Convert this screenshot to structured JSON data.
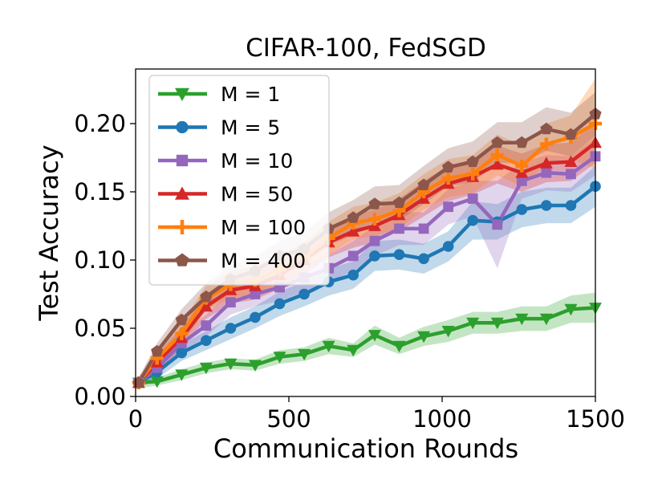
{
  "chart_data": {
    "type": "line",
    "title": "CIFAR-100, FedSGD",
    "xlabel": "Communication Rounds",
    "ylabel": "Test Accuracy",
    "xlim": [
      0,
      1500
    ],
    "ylim": [
      0,
      0.24
    ],
    "xticks": [
      0,
      500,
      1000,
      1500
    ],
    "yticks": [
      0.0,
      0.05,
      0.1,
      0.15,
      0.2
    ],
    "xtick_labels": [
      "0",
      "500",
      "1000",
      "1500"
    ],
    "ytick_labels": [
      "0.00",
      "0.05",
      "0.10",
      "0.15",
      "0.20"
    ],
    "grid": false,
    "legend_position": "upper-left",
    "x": [
      10,
      70,
      150,
      230,
      310,
      390,
      470,
      550,
      630,
      710,
      780,
      860,
      940,
      1020,
      1100,
      1180,
      1260,
      1340,
      1420,
      1500
    ],
    "series": [
      {
        "name": "M = 1",
        "color": "#2ca02c",
        "marker": "triangle-down",
        "values": [
          0.01,
          0.011,
          0.016,
          0.021,
          0.024,
          0.023,
          0.029,
          0.031,
          0.037,
          0.034,
          0.045,
          0.037,
          0.044,
          0.048,
          0.054,
          0.054,
          0.057,
          0.057,
          0.064,
          0.065
        ],
        "band": [
          0.004,
          0.003,
          0.004,
          0.004,
          0.004,
          0.004,
          0.005,
          0.005,
          0.006,
          0.005,
          0.007,
          0.006,
          0.007,
          0.008,
          0.008,
          0.008,
          0.009,
          0.009,
          0.01,
          0.011
        ]
      },
      {
        "name": "M = 5",
        "color": "#1f77b4",
        "marker": "circle",
        "values": [
          0.01,
          0.018,
          0.032,
          0.041,
          0.05,
          0.058,
          0.068,
          0.075,
          0.084,
          0.089,
          0.103,
          0.104,
          0.101,
          0.11,
          0.129,
          0.128,
          0.137,
          0.14,
          0.14,
          0.154
        ],
        "band": [
          0.004,
          0.005,
          0.006,
          0.007,
          0.008,
          0.008,
          0.009,
          0.009,
          0.01,
          0.01,
          0.011,
          0.011,
          0.011,
          0.011,
          0.014,
          0.013,
          0.013,
          0.013,
          0.013,
          0.015
        ]
      },
      {
        "name": "M = 10",
        "color": "#9467bd",
        "marker": "square",
        "values": [
          0.01,
          0.021,
          0.039,
          0.052,
          0.069,
          0.075,
          0.08,
          0.087,
          0.094,
          0.103,
          0.114,
          0.123,
          0.123,
          0.139,
          0.145,
          0.126,
          0.158,
          0.164,
          0.163,
          0.176
        ],
        "band": [
          0.004,
          0.006,
          0.007,
          0.008,
          0.009,
          0.009,
          0.01,
          0.01,
          0.01,
          0.011,
          0.011,
          0.012,
          0.012,
          0.013,
          0.013,
          0.032,
          0.013,
          0.013,
          0.013,
          0.014
        ]
      },
      {
        "name": "M = 50",
        "color": "#d62728",
        "marker": "triangle-up",
        "values": [
          0.01,
          0.025,
          0.043,
          0.066,
          0.078,
          0.081,
          0.089,
          0.1,
          0.113,
          0.121,
          0.125,
          0.133,
          0.145,
          0.156,
          0.161,
          0.17,
          0.164,
          0.171,
          0.172,
          0.186
        ],
        "band": [
          0.004,
          0.006,
          0.008,
          0.009,
          0.01,
          0.01,
          0.01,
          0.011,
          0.011,
          0.012,
          0.012,
          0.012,
          0.013,
          0.013,
          0.013,
          0.014,
          0.014,
          0.014,
          0.014,
          0.015
        ]
      },
      {
        "name": "M = 100",
        "color": "#ff7f0e",
        "marker": "plus",
        "values": [
          0.01,
          0.028,
          0.046,
          0.072,
          0.082,
          0.085,
          0.093,
          0.102,
          0.116,
          0.127,
          0.13,
          0.136,
          0.15,
          0.16,
          0.163,
          0.177,
          0.169,
          0.185,
          0.19,
          0.2
        ],
        "band": [
          0.004,
          0.006,
          0.008,
          0.009,
          0.01,
          0.01,
          0.011,
          0.011,
          0.012,
          0.012,
          0.012,
          0.013,
          0.013,
          0.014,
          0.014,
          0.015,
          0.015,
          0.015,
          0.016,
          0.033
        ]
      },
      {
        "name": "M = 400",
        "color": "#8c564b",
        "marker": "pentagon",
        "values": [
          0.01,
          0.033,
          0.056,
          0.073,
          0.086,
          0.092,
          0.103,
          0.108,
          0.123,
          0.131,
          0.141,
          0.142,
          0.155,
          0.168,
          0.172,
          0.186,
          0.186,
          0.196,
          0.192,
          0.207
        ],
        "band": [
          0.004,
          0.006,
          0.008,
          0.01,
          0.01,
          0.011,
          0.011,
          0.012,
          0.012,
          0.013,
          0.013,
          0.013,
          0.014,
          0.014,
          0.015,
          0.015,
          0.015,
          0.016,
          0.016,
          0.016
        ]
      }
    ]
  }
}
